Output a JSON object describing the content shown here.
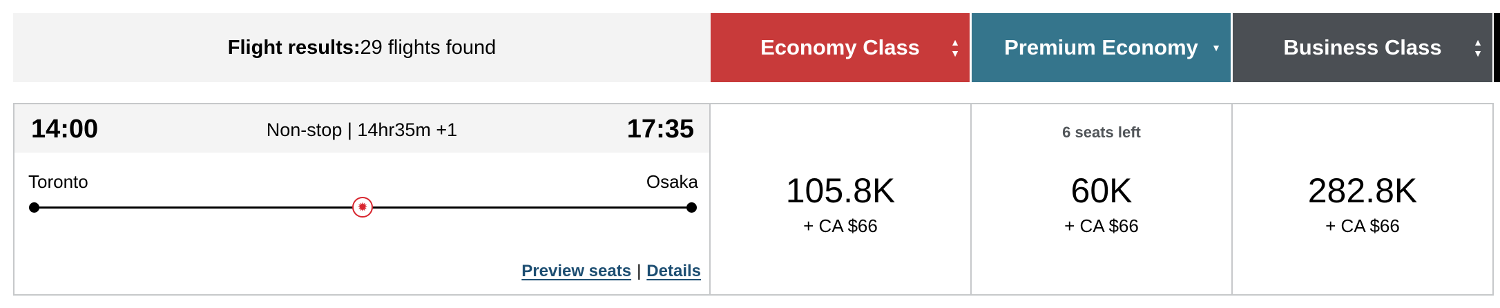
{
  "header": {
    "results_label": "Flight results:",
    "results_count": "29 flights found",
    "cabins": [
      {
        "label": "Economy Class",
        "color": "#c83a3a",
        "sort_icon": "sort-up-down-icon"
      },
      {
        "label": "Premium Economy",
        "color": "#35758c",
        "sort_icon": "sort-down-icon"
      },
      {
        "label": "Business Class",
        "color": "#4b4f54",
        "sort_icon": "sort-up-down-icon"
      }
    ]
  },
  "flight": {
    "depart_time": "14:00",
    "arrive_time": "17:35",
    "summary": "Non-stop | 14hr35m +1",
    "origin": "Toronto",
    "destination": "Osaka",
    "airline_icon": "maple-leaf-icon",
    "preview_seats": "Preview seats",
    "separator": "|",
    "details": "Details",
    "fares": [
      {
        "seats_left": "",
        "points": "105.8K",
        "cash": "+ CA $66"
      },
      {
        "seats_left": "6 seats left",
        "points": "60K",
        "cash": "+ CA $66"
      },
      {
        "seats_left": "",
        "points": "282.8K",
        "cash": "+ CA $66"
      }
    ]
  }
}
